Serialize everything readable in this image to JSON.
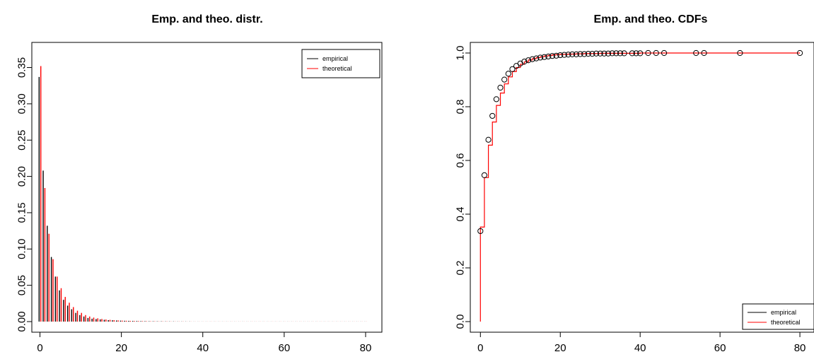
{
  "chart_data": [
    {
      "type": "bar",
      "title": "Emp. and theo. distr.",
      "xlabel": "",
      "ylabel": "",
      "xlim": [
        -2,
        84
      ],
      "ylim": [
        0,
        0.37
      ],
      "x_ticks": [
        0,
        20,
        40,
        60,
        80
      ],
      "y_ticks": [
        0.0,
        0.05,
        0.1,
        0.15,
        0.2,
        0.25,
        0.3,
        0.35
      ],
      "y_tick_labels": [
        "0.00",
        "0.05",
        "0.10",
        "0.15",
        "0.20",
        "0.25",
        "0.30",
        "0.35"
      ],
      "x_tick_labels": [
        "0",
        "20",
        "40",
        "60",
        "80"
      ],
      "grid": false,
      "legend_position": "top-right",
      "series": [
        {
          "name": "empirical",
          "color": "#000000",
          "x": [
            0,
            1,
            2,
            3,
            4,
            5,
            6,
            7,
            8,
            9,
            10,
            11,
            12,
            13,
            14,
            15,
            16,
            17,
            18,
            19,
            20,
            21,
            22,
            23,
            24,
            25,
            26,
            27,
            28,
            29,
            30,
            31,
            32,
            33,
            34,
            35,
            36,
            37,
            38,
            39,
            40,
            41,
            42,
            43,
            44,
            45,
            46,
            47,
            48,
            49,
            50,
            51,
            52,
            53,
            54,
            55,
            56,
            57,
            58,
            59,
            60,
            61,
            62,
            63,
            64,
            65,
            66,
            67,
            68,
            69,
            70,
            71,
            72,
            73,
            74,
            75,
            76,
            77,
            78,
            79,
            80
          ],
          "values": [
            0.337,
            0.208,
            0.132,
            0.089,
            0.062,
            0.043,
            0.03,
            0.022,
            0.017,
            0.012,
            0.009,
            0.007,
            0.005,
            0.004,
            0.0035,
            0.003,
            0.0025,
            0.002,
            0.0018,
            0.0015,
            0.0013,
            0.0011,
            0.001,
            0.0009,
            0.0008,
            0.0007,
            0.0006,
            0.0005,
            0.0005,
            0.0004,
            0.0004,
            0.0003,
            0.0003,
            0.0003,
            0.0002,
            0.0002,
            0.0002,
            0.0002,
            0.0001,
            0.0001,
            0.0001,
            0.0001,
            0.0001,
            0.0001,
            0.0001,
            0.0001,
            0.0001,
            0.0001,
            0.0001,
            0.0001,
            0.0001,
            0.0001,
            0.0001,
            0.0001,
            0.0001,
            0.0001,
            0.0001,
            0.0001,
            0.0001,
            0.0001,
            0.0001,
            0.0001,
            0.0001,
            0.0001,
            0.0001,
            0.0001,
            0.0001,
            0.0001,
            0.0001,
            0.0001,
            0.0001,
            0.0001,
            0.0001,
            0.0001,
            0.0001,
            0.0001,
            0.0001,
            0.0001,
            0.0001,
            0.0001,
            0.0001
          ]
        },
        {
          "name": "theoretical",
          "color": "#ff0000",
          "x": [
            0,
            1,
            2,
            3,
            4,
            5,
            6,
            7,
            8,
            9,
            10,
            11,
            12,
            13,
            14,
            15,
            16,
            17,
            18,
            19,
            20,
            21,
            22,
            23,
            24,
            25,
            26,
            27,
            28,
            29,
            30,
            31,
            32,
            33,
            34,
            35,
            36,
            37,
            38,
            39,
            40,
            41,
            42,
            43,
            44,
            45,
            46,
            47,
            48,
            49,
            50,
            51,
            52,
            53,
            54,
            55,
            56,
            57,
            58,
            59,
            60,
            61,
            62,
            63,
            64,
            65,
            66,
            67,
            68,
            69,
            70,
            71,
            72,
            73,
            74,
            75,
            76,
            77,
            78,
            79,
            80
          ],
          "values": [
            0.352,
            0.184,
            0.121,
            0.086,
            0.062,
            0.046,
            0.034,
            0.026,
            0.02,
            0.015,
            0.012,
            0.009,
            0.007,
            0.0055,
            0.0045,
            0.0036,
            0.0029,
            0.0024,
            0.0019,
            0.0016,
            0.0013,
            0.0011,
            0.0009,
            0.0008,
            0.0007,
            0.0006,
            0.0005,
            0.0004,
            0.0004,
            0.0003,
            0.0003,
            0.0003,
            0.0002,
            0.0002,
            0.0002,
            0.0002,
            0.0001,
            0.0001,
            0.0001,
            0.0001,
            0.0001,
            0.0001,
            0.0001,
            0.0001,
            0.0001,
            0.0001,
            0.0001,
            0.0001,
            0.0001,
            0.0001,
            0.0001,
            0.0001,
            0.0001,
            0.0001,
            0.0001,
            0.0001,
            0.0001,
            0.0001,
            0.0001,
            0.0001,
            0.0001,
            0.0001,
            0.0001,
            0.0001,
            0.0001,
            0.0001,
            0.0001,
            0.0001,
            0.0001,
            0.0001,
            0.0001,
            0.0001,
            0.0001,
            0.0001,
            0.0001,
            0.0001,
            0.0001,
            0.0001,
            0.0001,
            0.0001,
            0.0001
          ]
        }
      ]
    },
    {
      "type": "line",
      "title": "Emp. and theo. CDFs",
      "xlabel": "",
      "ylabel": "",
      "xlim": [
        -2,
        83
      ],
      "ylim": [
        0,
        1.0
      ],
      "x_ticks": [
        0,
        20,
        40,
        60,
        80
      ],
      "y_ticks": [
        0.0,
        0.2,
        0.4,
        0.6,
        0.8,
        1.0
      ],
      "y_tick_labels": [
        "0.0",
        "0.2",
        "0.4",
        "0.6",
        "0.8",
        "1.0"
      ],
      "x_tick_labels": [
        "0",
        "20",
        "40",
        "60",
        "80"
      ],
      "grid": false,
      "legend_position": "bottom-right",
      "series": [
        {
          "name": "empirical",
          "color": "#000000",
          "style": "points",
          "x": [
            0,
            1,
            2,
            3,
            4,
            5,
            6,
            7,
            8,
            9,
            10,
            11,
            12,
            13,
            14,
            15,
            16,
            17,
            18,
            19,
            20,
            21,
            22,
            23,
            24,
            25,
            26,
            27,
            28,
            29,
            30,
            31,
            32,
            33,
            34,
            35,
            36,
            38,
            39,
            40,
            42,
            44,
            46,
            54,
            56,
            65,
            80
          ],
          "values": [
            0.337,
            0.545,
            0.677,
            0.766,
            0.828,
            0.871,
            0.901,
            0.923,
            0.94,
            0.952,
            0.961,
            0.968,
            0.973,
            0.977,
            0.98,
            0.983,
            0.985,
            0.987,
            0.989,
            0.99,
            0.992,
            0.993,
            0.994,
            0.995,
            0.995,
            0.996,
            0.996,
            0.997,
            0.997,
            0.998,
            0.998,
            0.998,
            0.998,
            0.999,
            0.999,
            0.999,
            0.999,
            0.999,
            0.999,
            0.999,
            1.0,
            1.0,
            1.0,
            1.0,
            1.0,
            1.0,
            1.0
          ]
        },
        {
          "name": "theoretical",
          "color": "#ff0000",
          "style": "step",
          "x": [
            0,
            1,
            2,
            3,
            4,
            5,
            6,
            7,
            8,
            9,
            10,
            11,
            12,
            13,
            14,
            15,
            16,
            17,
            18,
            19,
            20,
            22,
            24,
            26,
            28,
            30,
            35,
            40,
            50,
            60,
            70,
            80
          ],
          "values": [
            0.352,
            0.536,
            0.657,
            0.743,
            0.805,
            0.851,
            0.885,
            0.911,
            0.931,
            0.946,
            0.958,
            0.967,
            0.974,
            0.979,
            0.983,
            0.986,
            0.989,
            0.991,
            0.993,
            0.994,
            0.995,
            0.996,
            0.997,
            0.998,
            0.998,
            0.999,
            0.999,
            1.0,
            1.0,
            1.0,
            1.0,
            1.0
          ]
        }
      ]
    }
  ]
}
